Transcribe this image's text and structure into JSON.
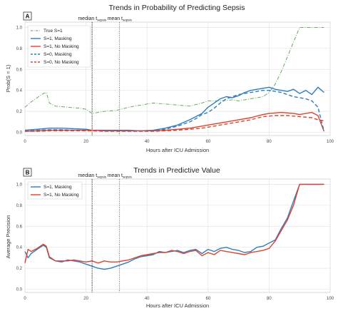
{
  "chart_data": [
    {
      "type": "line",
      "panel_label": "A",
      "title": "Trends in Probability of Predicting Sepsis",
      "xlabel": "Hours after ICU Admission",
      "ylabel": "Prob(S = 1)",
      "xlim": [
        0,
        100
      ],
      "ylim": [
        -0.03,
        1.05
      ],
      "xticks": [
        0,
        20,
        40,
        60,
        80,
        100
      ],
      "yticks": [
        0.0,
        0.2,
        0.4,
        0.6,
        0.8,
        1.0
      ],
      "grid": true,
      "legend_position": "top-left",
      "vlines": [
        {
          "label": "median t",
          "sub": "sepsis",
          "x": 22
        },
        {
          "label": "mean t",
          "sub": "sepsis",
          "x": 31
        }
      ],
      "series": [
        {
          "name": "True S=1",
          "color": "#55a34c",
          "style": "dashdot",
          "x": [
            0,
            2,
            4,
            6,
            7,
            8,
            10,
            14,
            18,
            20,
            22,
            24,
            26,
            30,
            34,
            38,
            42,
            46,
            50,
            54,
            58,
            60,
            64,
            68,
            70,
            72,
            76,
            78,
            80,
            82,
            84,
            86,
            88,
            90,
            94,
            98
          ],
          "y": [
            0.24,
            0.29,
            0.33,
            0.37,
            0.38,
            0.28,
            0.25,
            0.24,
            0.23,
            0.22,
            0.18,
            0.19,
            0.2,
            0.21,
            0.24,
            0.26,
            0.28,
            0.27,
            0.26,
            0.25,
            0.28,
            0.3,
            0.3,
            0.31,
            0.3,
            0.31,
            0.33,
            0.34,
            0.38,
            0.46,
            0.58,
            0.72,
            0.86,
            1.0,
            1.0,
            1.0
          ]
        },
        {
          "name": "S=1, Masking",
          "color": "#2e7ebc",
          "style": "solid",
          "x": [
            0,
            4,
            8,
            12,
            16,
            20,
            22,
            26,
            30,
            34,
            38,
            42,
            46,
            50,
            54,
            58,
            60,
            62,
            64,
            66,
            68,
            70,
            72,
            74,
            76,
            78,
            80,
            82,
            84,
            86,
            88,
            90,
            92,
            94,
            96,
            98
          ],
          "y": [
            0.02,
            0.03,
            0.04,
            0.04,
            0.035,
            0.03,
            0.02,
            0.02,
            0.02,
            0.02,
            0.015,
            0.02,
            0.04,
            0.07,
            0.12,
            0.18,
            0.24,
            0.28,
            0.32,
            0.34,
            0.33,
            0.35,
            0.38,
            0.4,
            0.41,
            0.42,
            0.43,
            0.41,
            0.4,
            0.39,
            0.41,
            0.37,
            0.4,
            0.36,
            0.43,
            0.38
          ]
        },
        {
          "name": "S=1, No Masking",
          "color": "#e1402f",
          "style": "solid",
          "x": [
            0,
            4,
            8,
            12,
            16,
            20,
            22,
            26,
            30,
            34,
            38,
            42,
            46,
            50,
            54,
            58,
            62,
            66,
            70,
            74,
            78,
            80,
            84,
            88,
            90,
            92,
            94,
            96,
            98
          ],
          "y": [
            0.01,
            0.015,
            0.02,
            0.02,
            0.02,
            0.02,
            0.02,
            0.015,
            0.015,
            0.015,
            0.015,
            0.015,
            0.02,
            0.03,
            0.04,
            0.06,
            0.08,
            0.1,
            0.12,
            0.14,
            0.17,
            0.18,
            0.19,
            0.18,
            0.17,
            0.18,
            0.19,
            0.16,
            0.01
          ]
        },
        {
          "name": "S=0, Masking",
          "color": "#2e7ebc",
          "style": "dashed",
          "x": [
            0,
            4,
            8,
            12,
            16,
            20,
            22,
            26,
            30,
            34,
            38,
            42,
            46,
            50,
            54,
            56,
            58,
            60,
            62,
            64,
            66,
            68,
            70,
            72,
            74,
            76,
            78,
            80,
            84,
            88,
            92,
            94,
            96,
            98
          ],
          "y": [
            0.015,
            0.02,
            0.025,
            0.025,
            0.02,
            0.02,
            0.015,
            0.015,
            0.015,
            0.015,
            0.015,
            0.02,
            0.03,
            0.06,
            0.1,
            0.13,
            0.17,
            0.19,
            0.23,
            0.28,
            0.32,
            0.34,
            0.36,
            0.37,
            0.38,
            0.39,
            0.4,
            0.4,
            0.38,
            0.34,
            0.32,
            0.3,
            0.24,
            0.01
          ]
        },
        {
          "name": "S=0, No Masking",
          "color": "#e1402f",
          "style": "dashed",
          "x": [
            0,
            4,
            8,
            12,
            16,
            20,
            22,
            26,
            30,
            34,
            38,
            42,
            46,
            50,
            54,
            58,
            62,
            66,
            70,
            74,
            78,
            82,
            86,
            90,
            94,
            96,
            98
          ],
          "y": [
            0.01,
            0.01,
            0.015,
            0.015,
            0.015,
            0.015,
            0.015,
            0.01,
            0.01,
            0.01,
            0.01,
            0.01,
            0.015,
            0.02,
            0.03,
            0.04,
            0.06,
            0.08,
            0.1,
            0.12,
            0.15,
            0.16,
            0.16,
            0.15,
            0.14,
            0.12,
            0.11
          ]
        }
      ]
    },
    {
      "type": "line",
      "panel_label": "B",
      "title": "Trends in Predictive Value",
      "xlabel": "Hours after ICU Admission",
      "ylabel": "Average Precision",
      "xlim": [
        0,
        100
      ],
      "ylim": [
        -0.03,
        1.05
      ],
      "xticks": [
        0,
        20,
        40,
        60,
        80,
        100
      ],
      "yticks": [
        0.0,
        0.2,
        0.4,
        0.6,
        0.8,
        1.0
      ],
      "grid": true,
      "legend_position": "top-left",
      "vlines": [
        {
          "label": "median t",
          "sub": "sepsis",
          "x": 22
        },
        {
          "label": "mean t",
          "sub": "sepsis",
          "x": 31
        }
      ],
      "series": [
        {
          "name": "S=1, Masking",
          "color": "#2e7ebc",
          "style": "solid",
          "x": [
            0,
            1,
            2,
            4,
            6,
            7,
            8,
            10,
            12,
            14,
            16,
            18,
            20,
            22,
            24,
            26,
            28,
            30,
            32,
            34,
            36,
            38,
            40,
            42,
            44,
            46,
            48,
            50,
            52,
            54,
            56,
            58,
            60,
            62,
            64,
            66,
            68,
            70,
            72,
            74,
            76,
            78,
            80,
            82,
            84,
            86,
            88,
            90,
            92,
            94,
            96,
            98
          ],
          "y": [
            0.36,
            0.3,
            0.34,
            0.38,
            0.42,
            0.4,
            0.3,
            0.27,
            0.26,
            0.28,
            0.27,
            0.26,
            0.24,
            0.22,
            0.2,
            0.19,
            0.2,
            0.22,
            0.24,
            0.26,
            0.29,
            0.31,
            0.32,
            0.33,
            0.36,
            0.35,
            0.36,
            0.37,
            0.35,
            0.37,
            0.38,
            0.34,
            0.38,
            0.36,
            0.39,
            0.4,
            0.38,
            0.37,
            0.35,
            0.36,
            0.4,
            0.41,
            0.44,
            0.47,
            0.58,
            0.68,
            0.84,
            1.0,
            1.0,
            1.0,
            1.0,
            1.0
          ]
        },
        {
          "name": "S=1, No Masking",
          "color": "#e1402f",
          "style": "solid",
          "x": [
            0,
            1,
            2,
            4,
            6,
            7,
            8,
            10,
            12,
            14,
            16,
            18,
            20,
            22,
            24,
            26,
            28,
            30,
            32,
            34,
            36,
            38,
            40,
            42,
            44,
            46,
            48,
            50,
            52,
            54,
            56,
            58,
            60,
            62,
            64,
            66,
            68,
            70,
            72,
            74,
            76,
            78,
            80,
            82,
            84,
            86,
            88,
            90,
            92,
            94,
            96,
            98
          ],
          "y": [
            0.25,
            0.38,
            0.36,
            0.39,
            0.43,
            0.41,
            0.31,
            0.27,
            0.27,
            0.27,
            0.28,
            0.27,
            0.26,
            0.27,
            0.25,
            0.27,
            0.26,
            0.26,
            0.27,
            0.28,
            0.3,
            0.32,
            0.33,
            0.34,
            0.35,
            0.35,
            0.37,
            0.36,
            0.34,
            0.36,
            0.37,
            0.32,
            0.35,
            0.33,
            0.37,
            0.36,
            0.35,
            0.34,
            0.33,
            0.35,
            0.36,
            0.37,
            0.39,
            0.46,
            0.56,
            0.66,
            0.8,
            1.0,
            1.0,
            1.0,
            1.0,
            1.0
          ]
        }
      ]
    }
  ]
}
